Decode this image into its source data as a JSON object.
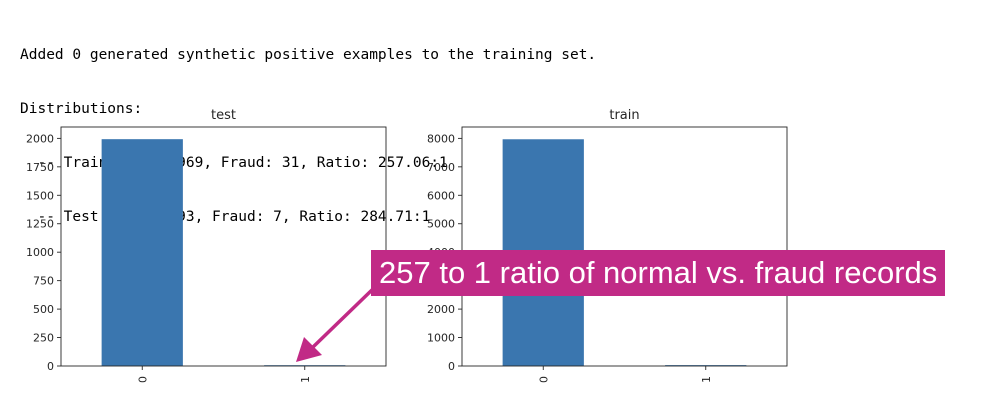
{
  "console_lines": [
    "Added 0 generated synthetic positive examples to the training set.",
    "Distributions:",
    "  -- Train Pass: 7969, Fraud: 31, Ratio: 257.06:1",
    "  -- Test Pass: 1993, Fraud: 7, Ratio: 284.71:1"
  ],
  "annotation": {
    "text": "257 to 1 ratio of normal vs. fraud records",
    "color": "#c12a86"
  },
  "chart_data": [
    {
      "type": "bar",
      "title": "test",
      "categories": [
        "0",
        "1"
      ],
      "values": [
        1993,
        7
      ],
      "ylim": [
        0,
        2100
      ],
      "yticks": [
        0,
        250,
        500,
        750,
        1000,
        1250,
        1500,
        1750,
        2000
      ],
      "xlabel": "",
      "ylabel": "",
      "bar_color": "#3a76af",
      "grid": false
    },
    {
      "type": "bar",
      "title": "train",
      "categories": [
        "0",
        "1"
      ],
      "values": [
        7969,
        31
      ],
      "ylim": [
        0,
        8400
      ],
      "yticks": [
        0,
        1000,
        2000,
        3000,
        4000,
        5000,
        6000,
        7000,
        8000
      ],
      "xlabel": "",
      "ylabel": "",
      "bar_color": "#3a76af",
      "grid": false
    }
  ]
}
